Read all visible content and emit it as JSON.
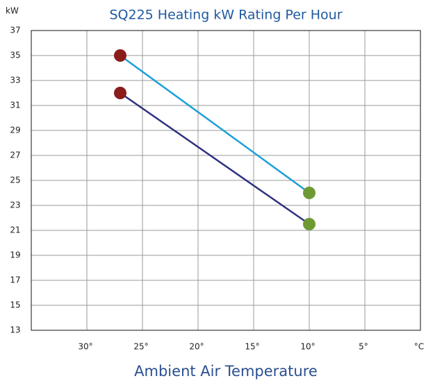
{
  "chart_data": {
    "type": "line",
    "title": "SQ225 Heating kW Rating Per Hour",
    "y_label": "kW",
    "x_label": "Ambient Air Temperature",
    "x": [
      27,
      10
    ],
    "series": [
      {
        "color": "#1a9fd9",
        "values": [
          35,
          24
        ]
      },
      {
        "color": "#2d2f7e",
        "values": [
          32,
          21.5
        ]
      }
    ],
    "marker_colors": [
      "#8a1c1c",
      "#6f9a33"
    ],
    "xlim": [
      35,
      0
    ],
    "xticks": [
      {
        "value": 30,
        "label": "30°"
      },
      {
        "value": 25,
        "label": "25°"
      },
      {
        "value": 20,
        "label": "20°"
      },
      {
        "value": 15,
        "label": "15°"
      },
      {
        "value": 10,
        "label": "10°"
      },
      {
        "value": 5,
        "label": "5°"
      },
      {
        "value": 0,
        "label": "°C"
      }
    ],
    "ylim": [
      13,
      37
    ],
    "yticks": [
      13,
      15,
      17,
      19,
      21,
      23,
      25,
      27,
      29,
      31,
      33,
      35,
      37
    ],
    "grid": true
  }
}
